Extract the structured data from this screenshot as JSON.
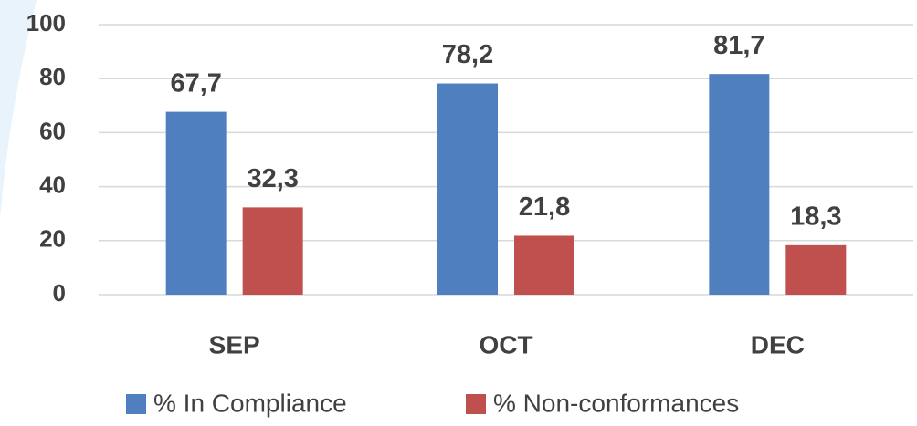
{
  "chart_data": {
    "type": "bar",
    "categories": [
      "SEP",
      "OCT",
      "DEC"
    ],
    "series": [
      {
        "name": "% In Compliance",
        "color": "#4f7fbf",
        "values": [
          67.7,
          78.2,
          81.7
        ],
        "value_labels": [
          "67,7",
          "78,2",
          "81,7"
        ]
      },
      {
        "name": "% Non-conformances",
        "color": "#c0504d",
        "values": [
          32.3,
          21.8,
          18.3
        ],
        "value_labels": [
          "32,3",
          "21,8",
          "18,3"
        ]
      }
    ],
    "ylim": [
      0,
      100
    ],
    "yticks": [
      0,
      20,
      40,
      60,
      80,
      100
    ],
    "grid": true,
    "legend": "bottom"
  }
}
